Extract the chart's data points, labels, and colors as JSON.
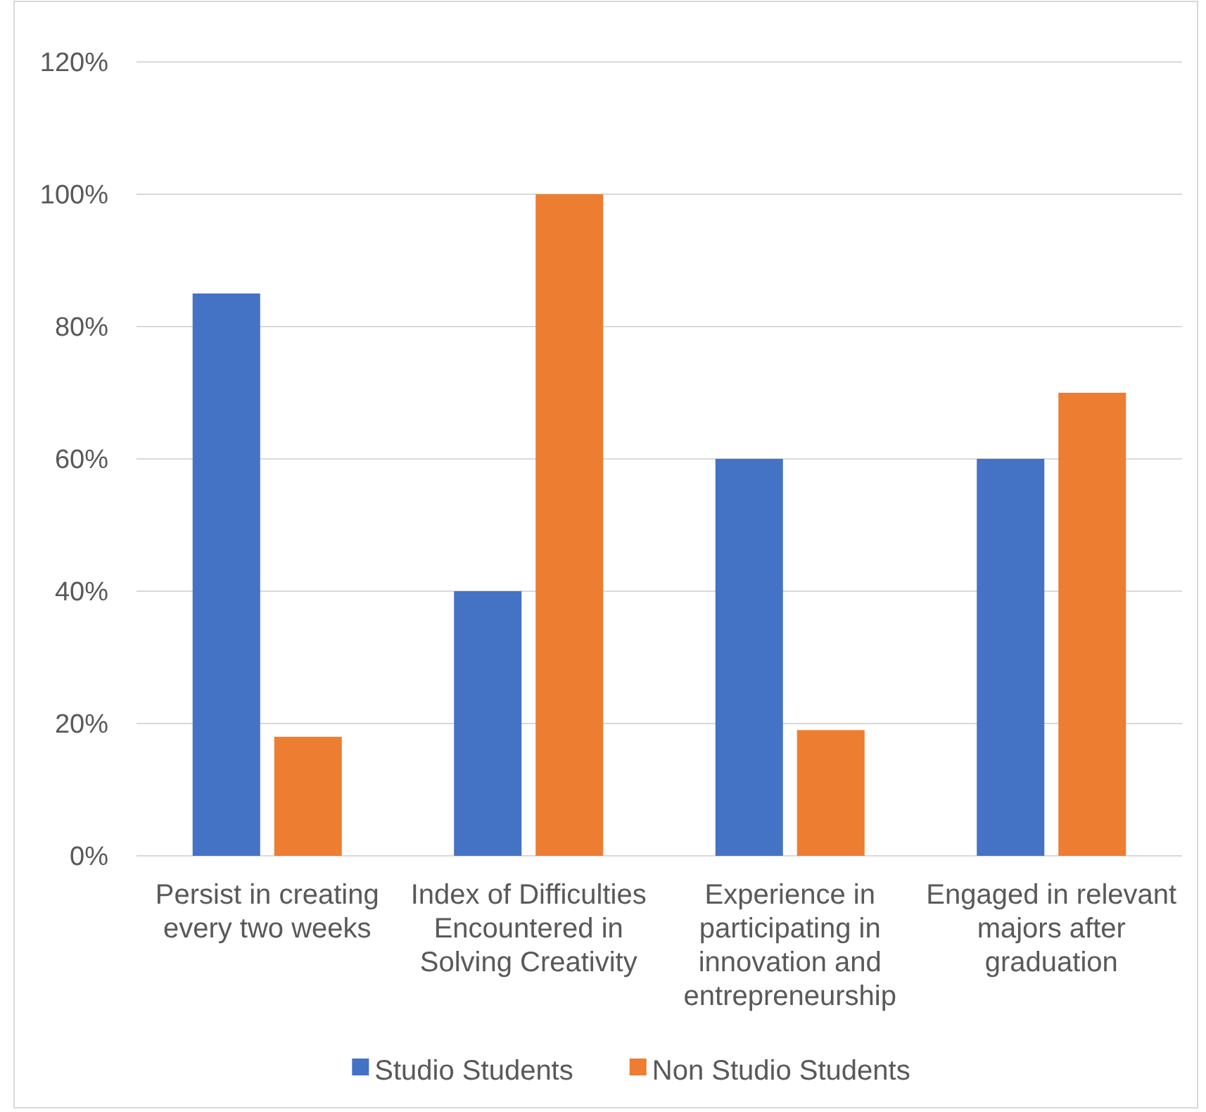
{
  "chart_data": {
    "type": "bar",
    "categories": [
      "Persist in creating every two weeks",
      "Index of Difficulties Encountered in Solving Creativity",
      "Experience in participating in innovation and entrepreneurship",
      "Engaged in relevant majors after graduation"
    ],
    "series": [
      {
        "name": "Studio Students",
        "color": "#4472c4",
        "values": [
          85,
          40,
          60,
          60
        ]
      },
      {
        "name": "Non Studio Students",
        "color": "#ed7d31",
        "values": [
          18,
          100,
          19,
          70
        ]
      }
    ],
    "ylim": [
      0,
      120
    ],
    "yticks": [
      {
        "value": 0,
        "label": "0%"
      },
      {
        "value": 20,
        "label": "20%"
      },
      {
        "value": 40,
        "label": "40%"
      },
      {
        "value": 60,
        "label": "60%"
      },
      {
        "value": 80,
        "label": "80%"
      },
      {
        "value": 100,
        "label": "100%"
      },
      {
        "value": 120,
        "label": "120%"
      }
    ],
    "grid": "y",
    "legend": "bottom"
  }
}
